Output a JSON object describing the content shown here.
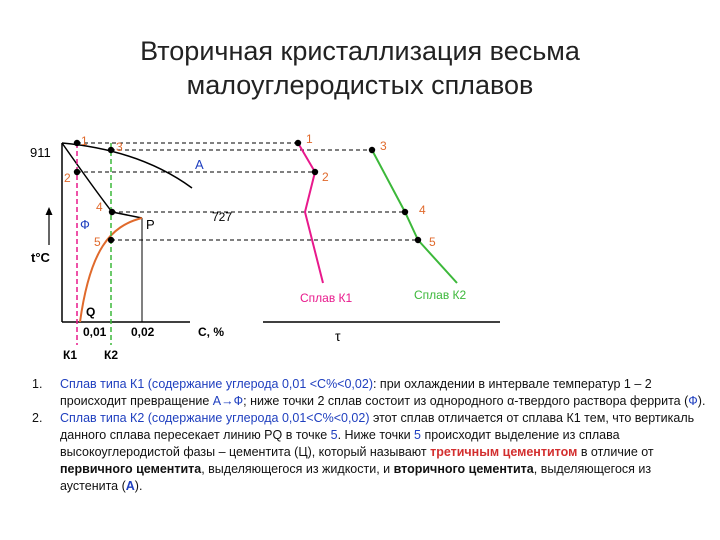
{
  "title_line1": "Вторичная кристаллизация весьма",
  "title_line2": "малоуглеродистых сплавов",
  "diagram": {
    "temp_911": "911",
    "axis_t": "t°C",
    "axis_c": "C, %",
    "axis_tau": "τ",
    "temp_727": "727",
    "region_a": "A",
    "region_phi": "Ф",
    "point_p": "P",
    "point_q": "Q",
    "tick_001": "0,01",
    "tick_002": "0,02",
    "k1": "К1",
    "k2": "К2",
    "p1": "1",
    "p2": "2",
    "p3": "3",
    "p4": "4",
    "p5": "5",
    "c1": "1",
    "c2": "2",
    "c3": "3",
    "c4": "4",
    "c5": "5",
    "alloy_k1": "Сплав К1",
    "alloy_k2": "Сплав К2",
    "colors": {
      "k1": "#e8198c",
      "k2": "#3cb83a",
      "pq": "#e06a2c"
    }
  },
  "notes": {
    "n1_num": "1.",
    "n1_a": "Сплав типа К1 (содержание углерода 0,01 <С%<0,02)",
    "n1_b": ": при охлаждении в интервале температур 1 – 2  происходит превращение ",
    "n1_c": "А→Ф",
    "n1_d": "; ниже точки 2 сплав состоит из однородного α-твердого раствора феррита (",
    "n1_e": "Ф",
    "n1_f": ").",
    "n2_num": "2.",
    "n2_a": "Сплав типа К2 (содержание углерода 0,01<С%<0,02)",
    "n2_b": "  этот сплав отличается от сплава К1 тем, что вертикаль данного сплава пересекает линию PQ в точке ",
    "n2_c": "5",
    "n2_d": ". Ниже точки ",
    "n2_e": "5",
    "n2_f": " происходит выделение из сплава высокоуглеродистой фазы – цементита (Ц), который называют ",
    "n2_g": "третичным цементитом",
    "n2_h": " в отличие от ",
    "n2_i": "первичного цементита",
    "n2_j": ", выделяющегося из жидкости, и ",
    "n2_k": "вторичного цементита",
    "n2_l": ", выделяющегося из аустенита (",
    "n2_m": "А",
    "n2_n": ")."
  }
}
